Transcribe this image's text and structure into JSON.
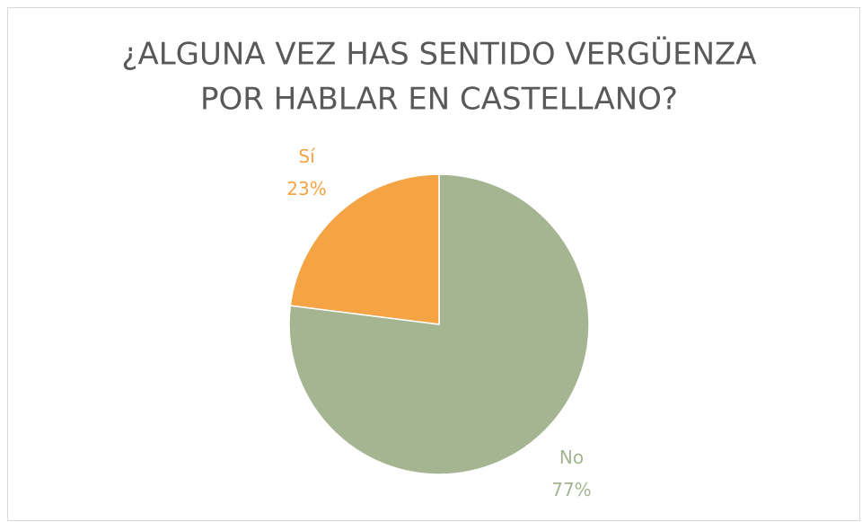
{
  "chart_data": {
    "type": "pie",
    "title": [
      "¿ALGUNA VEZ HAS SENTIDO VERGÜENZA",
      "POR HABLAR EN CASTELLANO?"
    ],
    "categories": [
      "No",
      "Sí"
    ],
    "values": [
      77,
      23
    ],
    "value_labels": [
      "77%",
      "23%"
    ],
    "colors": [
      "#a5b592",
      "#f4a444"
    ]
  }
}
